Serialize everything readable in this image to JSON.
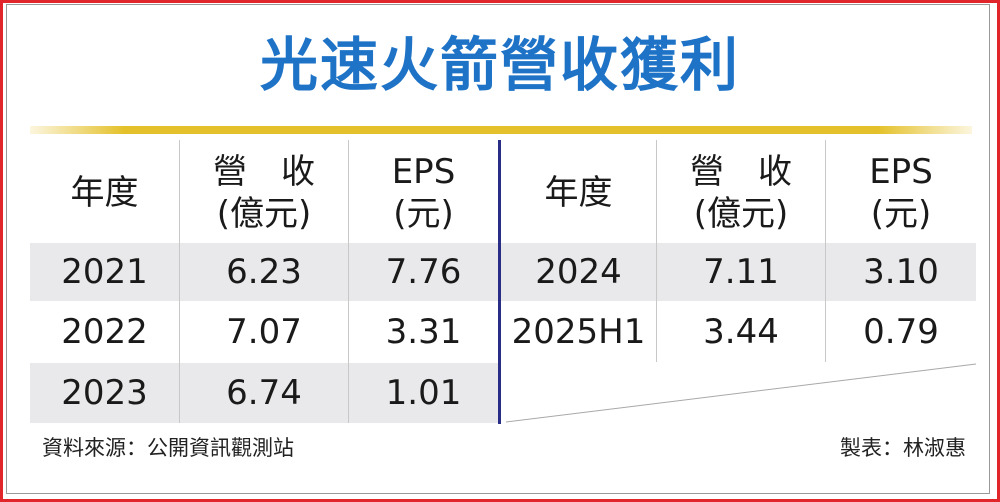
{
  "title": "光速火箭營收獲利",
  "left_table": {
    "headers": {
      "year": "年度",
      "revenue_1": "營　收",
      "revenue_2": "(億元)",
      "eps_1": "EPS",
      "eps_2": "(元)"
    },
    "rows": [
      {
        "year": "2021",
        "revenue": "6.23",
        "eps": "7.76"
      },
      {
        "year": "2022",
        "revenue": "7.07",
        "eps": "3.31"
      },
      {
        "year": "2023",
        "revenue": "6.74",
        "eps": "1.01"
      }
    ]
  },
  "right_table": {
    "headers": {
      "year": "年度",
      "revenue_1": "營　收",
      "revenue_2": "(億元)",
      "eps_1": "EPS",
      "eps_2": "(元)"
    },
    "rows": [
      {
        "year": "2024",
        "revenue": "7.11",
        "eps": "3.10"
      },
      {
        "year": "2025H1",
        "revenue": "3.44",
        "eps": "0.79"
      }
    ]
  },
  "source": "資料來源：公開資訊觀測站",
  "credit": "製表：林淑惠",
  "colors": {
    "border": "#e0262a",
    "title": "#1e73c7",
    "rule": "#e4c12a",
    "divider": "#2a2d86",
    "band": "#e9e9eb"
  }
}
